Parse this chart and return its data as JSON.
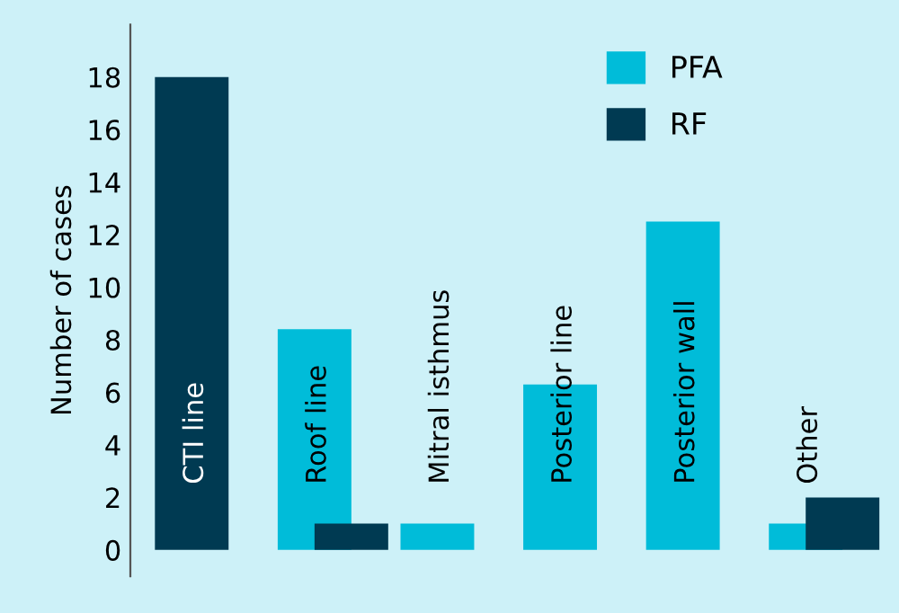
{
  "chart_data": {
    "type": "bar",
    "ylabel": "Number of cases",
    "categories": [
      "CTI line",
      "Roof line",
      "Mitral isthmus",
      "Posterior line",
      "Posterior wall",
      "Other"
    ],
    "series": [
      {
        "name": "PFA",
        "color": "#00bcd9",
        "values": [
          null,
          8.4,
          1,
          6.3,
          12.5,
          1
        ]
      },
      {
        "name": "RF",
        "color": "#003a52",
        "values": [
          18,
          1,
          null,
          null,
          null,
          2
        ]
      }
    ],
    "ylim": [
      -1,
      20
    ],
    "yticks": [
      0,
      2,
      4,
      6,
      8,
      10,
      12,
      14,
      16,
      18
    ],
    "legend": "top right",
    "grid": false,
    "tick_labels": "y"
  }
}
